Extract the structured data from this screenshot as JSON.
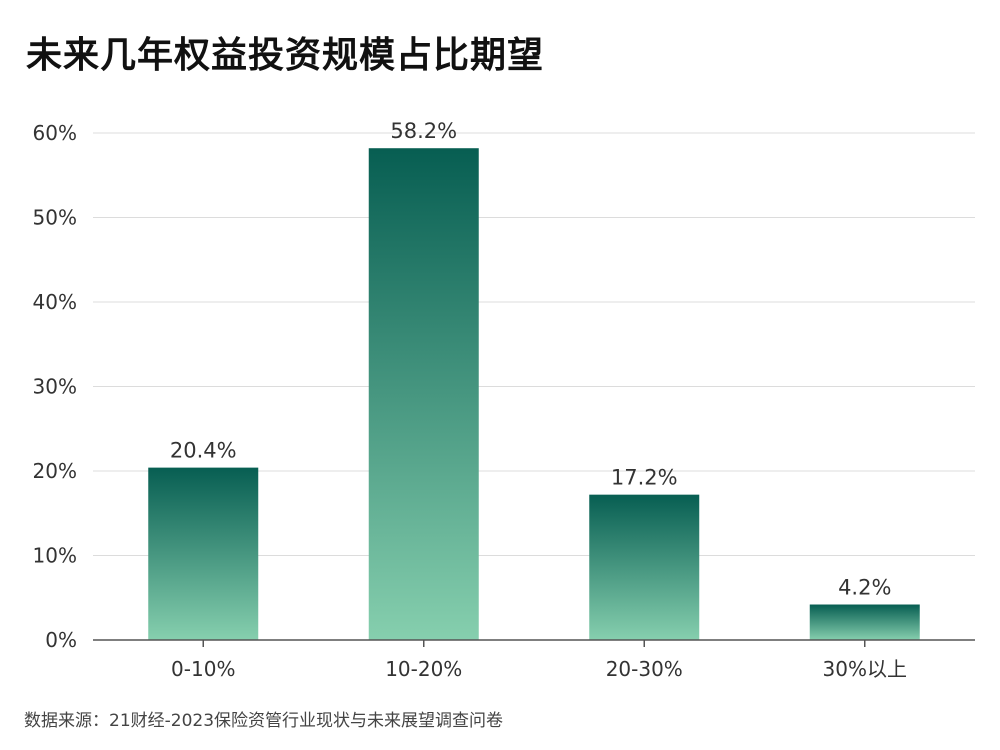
{
  "title": "未来几年权益投资规模占比期望",
  "source": "数据来源：21财经-2023保险资管行业现状与未来展望调查问卷",
  "colors": {
    "bar_top": "#075e52",
    "bar_bottom": "#86cfae",
    "grid": "#dcdcdc",
    "axis": "#555555"
  },
  "chart_data": {
    "type": "bar",
    "categories": [
      "0-10%",
      "10-20%",
      "20-30%",
      "30%以上"
    ],
    "values": [
      20.4,
      58.2,
      17.2,
      4.2
    ],
    "data_labels": [
      "20.4%",
      "58.2%",
      "17.2%",
      "4.2%"
    ],
    "title": "未来几年权益投资规模占比期望",
    "xlabel": "",
    "ylabel": "",
    "ylim": [
      0,
      60
    ],
    "yticks": [
      0,
      10,
      20,
      30,
      40,
      50,
      60
    ],
    "ytick_labels": [
      "0%",
      "10%",
      "20%",
      "30%",
      "40%",
      "50%",
      "60%"
    ],
    "grid": true,
    "legend": "none"
  }
}
